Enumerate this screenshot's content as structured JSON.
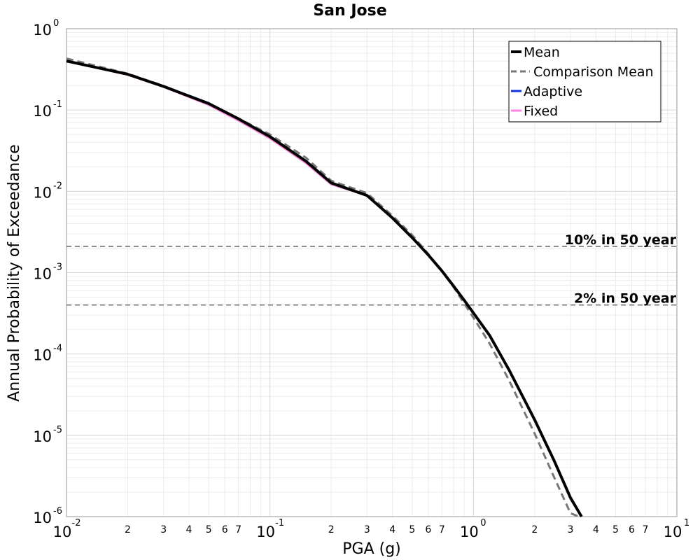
{
  "chart_data": {
    "type": "line",
    "title": "San Jose",
    "xlabel": "PGA (g)",
    "ylabel": "Annual Probability of Exceedance",
    "xscale": "log",
    "yscale": "log",
    "xlim": [
      0.01,
      10
    ],
    "ylim": [
      1e-06,
      1
    ],
    "grid": true,
    "legend_position": "top-right",
    "x_ticks": [
      {
        "value": 0.01,
        "base": "10",
        "exp": "-2"
      },
      {
        "value": 0.1,
        "base": "10",
        "exp": "-1"
      },
      {
        "value": 1,
        "base": "10",
        "exp": "0"
      },
      {
        "value": 10,
        "base": "10",
        "exp": "1"
      }
    ],
    "x_minor_labels": [
      {
        "value": 0.02,
        "label": "2"
      },
      {
        "value": 0.03,
        "label": "3"
      },
      {
        "value": 0.04,
        "label": "4"
      },
      {
        "value": 0.05,
        "label": "5"
      },
      {
        "value": 0.06,
        "label": "6"
      },
      {
        "value": 0.07,
        "label": "7"
      },
      {
        "value": 0.2,
        "label": "2"
      },
      {
        "value": 0.3,
        "label": "3"
      },
      {
        "value": 0.4,
        "label": "4"
      },
      {
        "value": 0.5,
        "label": "5"
      },
      {
        "value": 0.6,
        "label": "6"
      },
      {
        "value": 0.7,
        "label": "7"
      },
      {
        "value": 2,
        "label": "2"
      },
      {
        "value": 3,
        "label": "3"
      },
      {
        "value": 4,
        "label": "4"
      },
      {
        "value": 5,
        "label": "5"
      },
      {
        "value": 6,
        "label": "6"
      },
      {
        "value": 7,
        "label": "7"
      }
    ],
    "y_ticks": [
      {
        "value": 1,
        "base": "10",
        "exp": "0"
      },
      {
        "value": 0.1,
        "base": "10",
        "exp": "-1"
      },
      {
        "value": 0.01,
        "base": "10",
        "exp": "-2"
      },
      {
        "value": 0.001,
        "base": "10",
        "exp": "-3"
      },
      {
        "value": 0.0001,
        "base": "10",
        "exp": "-4"
      },
      {
        "value": 1e-05,
        "base": "10",
        "exp": "-5"
      },
      {
        "value": 1e-06,
        "base": "10",
        "exp": "-6"
      }
    ],
    "reference_lines": [
      {
        "label": "10% in 50 year",
        "y": 0.0021,
        "color": "#777777"
      },
      {
        "label": "2% in 50 year",
        "y": 0.0004,
        "color": "#777777"
      }
    ],
    "series": [
      {
        "name": "Fixed",
        "color": "#ff88dd",
        "style": "solid",
        "x": [
          0.01,
          0.02,
          0.03,
          0.05,
          0.07,
          0.1,
          0.15,
          0.2,
          0.3,
          0.4,
          0.5,
          0.6,
          0.7,
          0.8,
          0.9,
          1,
          1.2,
          1.5
        ],
        "y": [
          0.4,
          0.27,
          0.192,
          0.115,
          0.074,
          0.0445,
          0.0222,
          0.0121,
          0.0089,
          0.0047,
          0.0027,
          0.00165,
          0.00105,
          0.00068,
          0.00046,
          0.00032,
          0.00017,
          6.3e-05
        ]
      },
      {
        "name": "Adaptive",
        "color": "#1133dd",
        "style": "solid",
        "x": [
          0.01,
          0.02,
          0.03,
          0.05,
          0.07,
          0.1,
          0.15,
          0.2,
          0.3,
          0.4,
          0.5,
          0.6,
          0.7,
          0.8,
          0.9,
          1,
          1.2,
          1.5
        ],
        "y": [
          0.4,
          0.275,
          0.198,
          0.122,
          0.079,
          0.048,
          0.0236,
          0.0127,
          0.0089,
          0.0047,
          0.0027,
          0.00165,
          0.00105,
          0.00068,
          0.00046,
          0.00032,
          0.00017,
          6.3e-05
        ]
      },
      {
        "name": "Comparison Mean",
        "color": "#777777",
        "style": "dashed",
        "x": [
          0.01,
          0.02,
          0.03,
          0.05,
          0.07,
          0.1,
          0.15,
          0.2,
          0.3,
          0.4,
          0.5,
          0.6,
          0.7,
          0.8,
          0.9,
          1,
          1.2,
          1.5,
          2,
          2.5,
          3,
          3.3
        ],
        "y": [
          0.43,
          0.28,
          0.198,
          0.12,
          0.079,
          0.05,
          0.026,
          0.0135,
          0.0095,
          0.005,
          0.0029,
          0.0017,
          0.00105,
          0.00066,
          0.00042,
          0.00028,
          0.000135,
          4.7e-05,
          1.05e-05,
          3e-06,
          1.1e-06,
          1e-06
        ]
      },
      {
        "name": "Mean",
        "color": "#000000",
        "style": "solid",
        "x": [
          0.01,
          0.02,
          0.03,
          0.05,
          0.07,
          0.1,
          0.15,
          0.2,
          0.3,
          0.4,
          0.5,
          0.6,
          0.7,
          0.8,
          0.9,
          1,
          1.2,
          1.5,
          2,
          2.5,
          3,
          3.4
        ],
        "y": [
          0.4,
          0.275,
          0.195,
          0.12,
          0.078,
          0.047,
          0.0235,
          0.0127,
          0.0089,
          0.0047,
          0.0027,
          0.00165,
          0.00105,
          0.00068,
          0.00046,
          0.00032,
          0.00017,
          6.3e-05,
          1.55e-05,
          4.8e-06,
          1.7e-06,
          1e-06
        ]
      }
    ],
    "legend": [
      {
        "label": "Mean",
        "color": "#000000",
        "style": "solid"
      },
      {
        "label": "Comparison Mean",
        "color": "#777777",
        "style": "dashed"
      },
      {
        "label": "Adaptive",
        "color": "#1133dd",
        "style": "solid"
      },
      {
        "label": "Fixed",
        "color": "#ff88dd",
        "style": "solid"
      }
    ]
  }
}
